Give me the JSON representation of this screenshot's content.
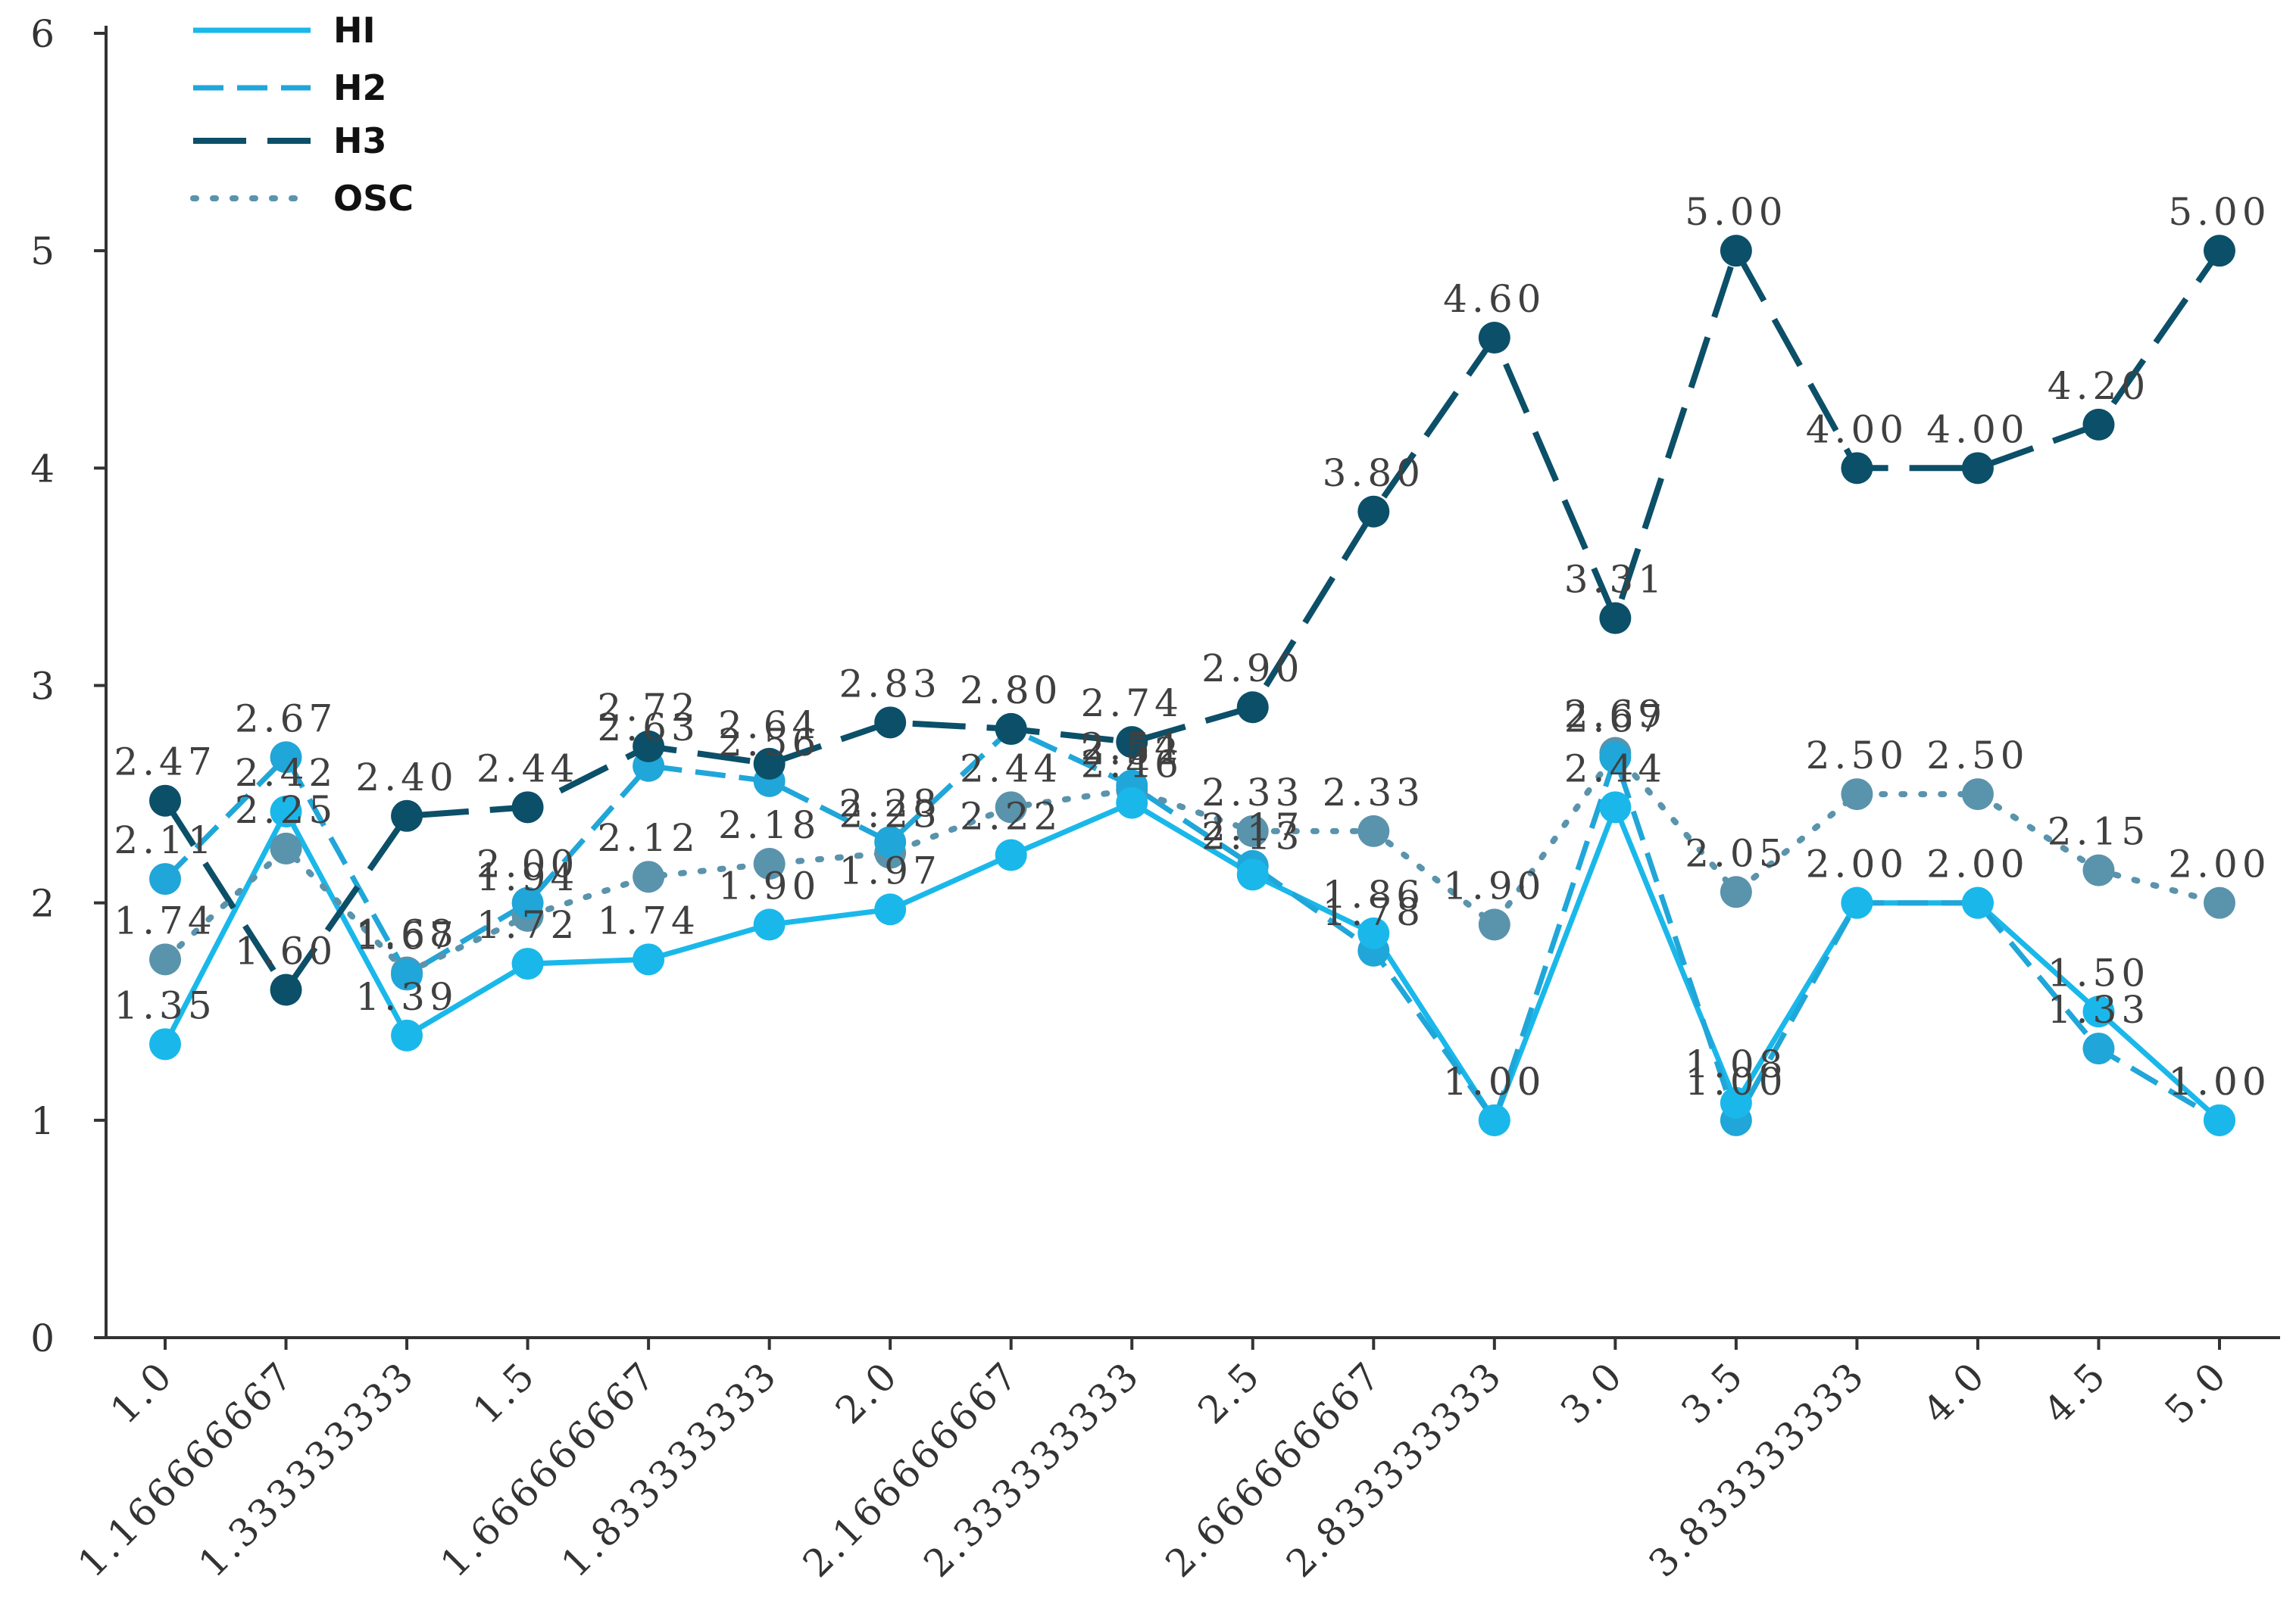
{
  "chart_data": {
    "type": "line",
    "title": "",
    "xlabel": "",
    "ylabel": "",
    "ylim": [
      0,
      6
    ],
    "yticks": [
      "0",
      "1",
      "2",
      "3",
      "4",
      "5",
      "6"
    ],
    "grid": false,
    "legend_position": "top-left",
    "categories": [
      "1.0",
      "1.166666667",
      "1.333333333",
      "1.5",
      "1.666666667",
      "1.833333333",
      "2.0",
      "2.166666667",
      "2.333333333",
      "2.5",
      "2.666666667",
      "2.833333333",
      "3.0",
      "3.5",
      "3.833333333",
      "4.0",
      "4.5",
      "5.0"
    ],
    "series": [
      {
        "name": "HI",
        "color": "#1ab8ea",
        "values": [
          1.35,
          2.42,
          1.39,
          1.72,
          1.74,
          1.9,
          1.97,
          2.22,
          2.46,
          2.13,
          1.86,
          1.0,
          2.44,
          1.08,
          2.0,
          2.0,
          1.5,
          1.0
        ],
        "labels": [
          "1.35",
          "2.42",
          "1.39",
          "1.72",
          "1.74",
          "1.90",
          "1.97",
          "2.22",
          "2.46",
          "2.13",
          "1.86",
          "1.00",
          "2.44",
          "1.08",
          "2.00",
          "2.00",
          "1.50",
          "1.00"
        ]
      },
      {
        "name": "H2",
        "color": "#20a6d8",
        "values": [
          2.11,
          2.67,
          1.67,
          2.0,
          2.63,
          2.56,
          2.28,
          2.8,
          2.54,
          2.17,
          1.78,
          1.0,
          2.67,
          1.0,
          2.0,
          2.0,
          1.33,
          1.0
        ],
        "labels": [
          "2.11",
          "2.67",
          "1.67",
          "2.00",
          "2.63",
          "2.56",
          "2.28",
          "2.80",
          "2.54",
          "2.17",
          "1.78",
          "1.00",
          "2.67",
          "1.00",
          "2.00",
          "2.00",
          "1.33",
          "1.00"
        ]
      },
      {
        "name": "H3",
        "color": "#0c4f68",
        "values": [
          2.47,
          1.6,
          2.4,
          2.44,
          2.72,
          2.64,
          2.83,
          2.8,
          2.74,
          2.9,
          3.8,
          4.6,
          3.31,
          5.0,
          4.0,
          4.0,
          4.2,
          5.0
        ],
        "labels": [
          "2.47",
          "1.60",
          "2.40",
          "2.44",
          "2.72",
          "2.64",
          "2.83",
          "2.80",
          "2.74",
          "2.90",
          "3.80",
          "4.60",
          "3.31",
          "5.00",
          "4.00",
          "4.00",
          "4.20",
          "5.00"
        ]
      },
      {
        "name": "OSC",
        "color": "#5a93ac",
        "values": [
          1.74,
          2.25,
          1.68,
          1.94,
          2.12,
          2.18,
          2.23,
          2.44,
          2.52,
          2.33,
          2.33,
          1.9,
          2.69,
          2.05,
          2.5,
          2.5,
          2.15,
          2.0
        ],
        "labels": [
          "1.74",
          "2.25",
          "1.68",
          "1.94",
          "2.12",
          "2.18",
          "2.23",
          "2.44",
          "2.52",
          "2.33",
          "2.33",
          "1.90",
          "2.69",
          "2.05",
          "2.50",
          "2.50",
          "2.15",
          "2.00"
        ]
      }
    ]
  }
}
